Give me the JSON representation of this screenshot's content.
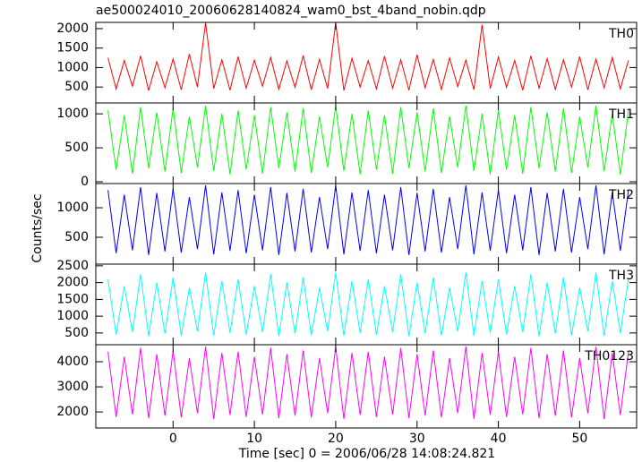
{
  "chart_data": {
    "type": "line",
    "title": "ae500024010_20060628140824_wam0_bst_4band_nobin.qdp",
    "xlabel": "Time [sec] 0 = 2006/06/28 14:08:24.821",
    "ylabel": "Counts/sec",
    "xlim": [
      -9.5,
      57
    ],
    "xticks": [
      0,
      10,
      20,
      30,
      40,
      50
    ],
    "x": [
      -8,
      -7,
      -6,
      -5,
      -4,
      -3,
      -2,
      -1,
      0,
      1,
      2,
      3,
      4,
      5,
      6,
      7,
      8,
      9,
      10,
      11,
      12,
      13,
      14,
      15,
      16,
      17,
      18,
      19,
      20,
      21,
      22,
      23,
      24,
      25,
      26,
      27,
      28,
      29,
      30,
      31,
      32,
      33,
      34,
      35,
      36,
      37,
      38,
      39,
      40,
      41,
      42,
      43,
      44,
      45,
      46,
      47,
      48,
      49,
      50,
      51,
      52,
      53,
      54,
      55,
      56
    ],
    "panels": [
      {
        "name": "TH0",
        "color": "#ff0000",
        "ylim": [
          90,
          2160
        ],
        "yticks": [
          500,
          1000,
          1500,
          2000
        ],
        "values": [
          1250,
          450,
          1180,
          520,
          1300,
          410,
          1150,
          480,
          1220,
          430,
          1350,
          500,
          2150,
          460,
          1200,
          420,
          1280,
          470,
          1190,
          520,
          1260,
          440,
          1170,
          490,
          1310,
          430,
          1210,
          460,
          2150,
          410,
          1240,
          500,
          1180,
          450,
          1290,
          470,
          1200,
          420,
          1330,
          480,
          1210,
          440,
          1250,
          510,
          1190,
          430,
          2100,
          460,
          1270,
          490,
          1180,
          420,
          1300,
          470,
          1230,
          440,
          1200,
          500,
          1280,
          430,
          1220,
          480,
          1260,
          450,
          1190
        ]
      },
      {
        "name": "TH1",
        "color": "#00ff00",
        "ylim": [
          -26,
          1160
        ],
        "yticks": [
          0,
          500,
          1000
        ],
        "values": [
          1050,
          180,
          980,
          120,
          1100,
          200,
          1020,
          150,
          1080,
          130,
          960,
          210,
          1120,
          160,
          1000,
          110,
          1050,
          180,
          980,
          120,
          1100,
          200,
          1020,
          150,
          1080,
          130,
          960,
          210,
          1120,
          160,
          1000,
          110,
          1050,
          180,
          980,
          120,
          1100,
          200,
          1020,
          150,
          1080,
          130,
          960,
          210,
          1120,
          160,
          1000,
          110,
          1050,
          180,
          980,
          120,
          1100,
          200,
          1020,
          150,
          1080,
          130,
          960,
          210,
          1120,
          160,
          1000,
          110,
          1050
        ]
      },
      {
        "name": "TH2",
        "color": "#0000ff",
        "ylim": [
          45,
          1410
        ],
        "yticks": [
          500,
          1000
        ],
        "values": [
          1300,
          230,
          1220,
          280,
          1350,
          200,
          1250,
          260,
          1320,
          240,
          1180,
          300,
          1380,
          210,
          1260,
          270,
          1300,
          230,
          1220,
          280,
          1350,
          200,
          1250,
          260,
          1320,
          240,
          1180,
          300,
          1380,
          210,
          1260,
          270,
          1300,
          230,
          1220,
          280,
          1350,
          200,
          1250,
          260,
          1320,
          240,
          1180,
          300,
          1380,
          210,
          1260,
          270,
          1300,
          230,
          1220,
          280,
          1350,
          200,
          1250,
          260,
          1320,
          240,
          1180,
          300,
          1380,
          210,
          1260,
          270,
          1300
        ]
      },
      {
        "name": "TH3",
        "color": "#00ffff",
        "ylim": [
          150,
          2550
        ],
        "yticks": [
          500,
          1000,
          1500,
          2000,
          2500
        ],
        "values": [
          2100,
          450,
          1900,
          520,
          2250,
          400,
          2000,
          480,
          2150,
          430,
          1850,
          550,
          2300,
          420,
          2050,
          500,
          2100,
          450,
          1900,
          520,
          2250,
          400,
          2000,
          480,
          2150,
          430,
          1850,
          550,
          2300,
          420,
          2050,
          500,
          2100,
          450,
          1900,
          520,
          2250,
          400,
          2000,
          480,
          2150,
          430,
          1850,
          550,
          2300,
          420,
          2050,
          500,
          2100,
          450,
          1900,
          520,
          2250,
          400,
          2000,
          480,
          2150,
          430,
          1850,
          550,
          2300,
          420,
          2050,
          500,
          2100
        ]
      },
      {
        "name": "TH0123",
        "color": "#ff00ff",
        "ylim": [
          1360,
          4680
        ],
        "yticks": [
          2000,
          3000,
          4000
        ],
        "values": [
          4400,
          1800,
          4200,
          1900,
          4550,
          1750,
          4300,
          1850,
          4450,
          1780,
          4150,
          1950,
          4600,
          1720,
          4350,
          1880,
          4400,
          1800,
          4200,
          1900,
          4550,
          1750,
          4300,
          1850,
          4450,
          1780,
          4150,
          1950,
          4600,
          1720,
          4350,
          1880,
          4400,
          1800,
          4200,
          1900,
          4550,
          1750,
          4300,
          1850,
          4450,
          1780,
          4150,
          1950,
          4600,
          1720,
          4350,
          1880,
          4400,
          1800,
          4200,
          1900,
          4550,
          1750,
          4300,
          1850,
          4450,
          1780,
          4150,
          1950,
          4600,
          1720,
          4350,
          1880,
          4400
        ]
      }
    ]
  }
}
